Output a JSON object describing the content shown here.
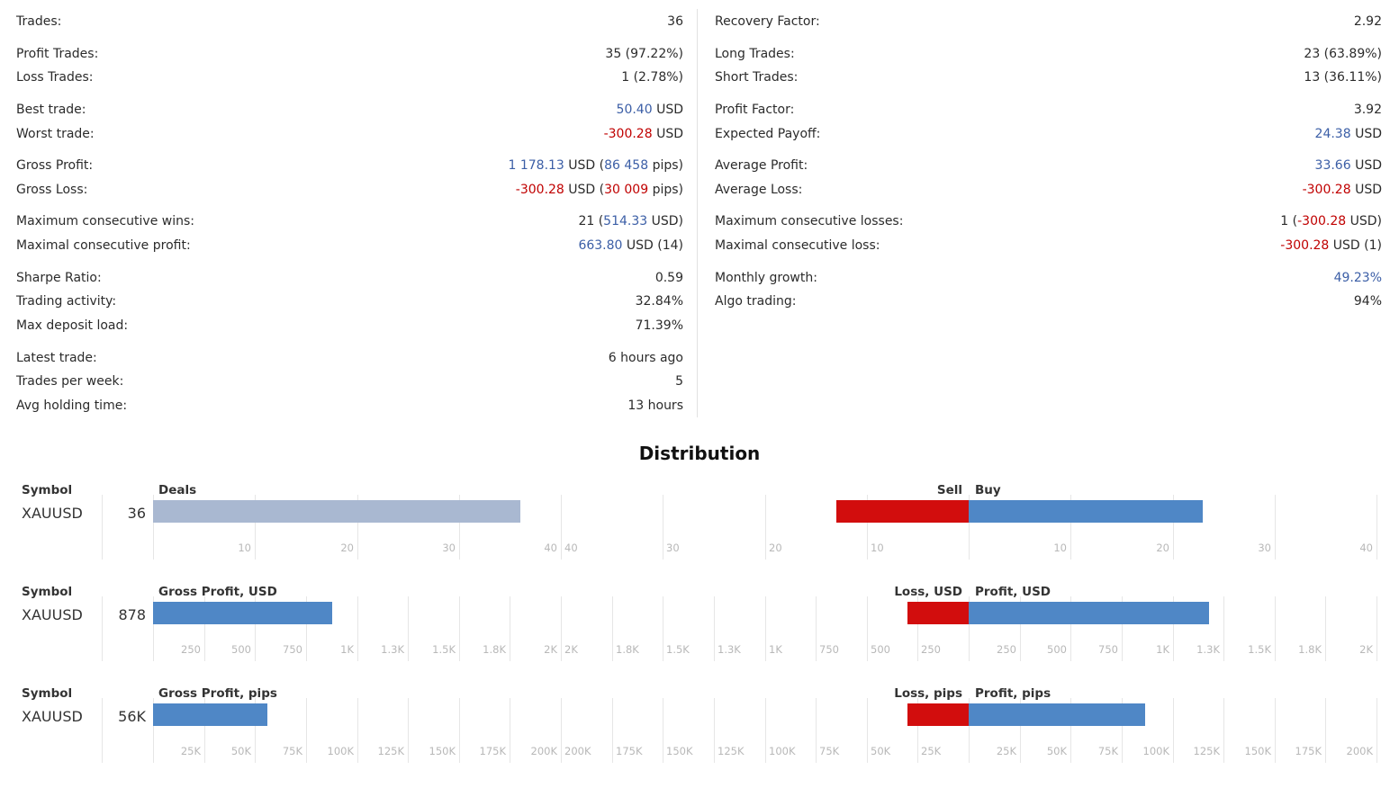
{
  "left_stats": [
    {
      "label": "Trades:",
      "value": [
        {
          "t": "36"
        }
      ]
    },
    {
      "label": "Profit Trades:",
      "value": [
        {
          "t": "35 (97.22%)"
        }
      ]
    },
    {
      "label": "Loss Trades:",
      "value": [
        {
          "t": "1 (2.78%)"
        }
      ]
    },
    {
      "label": "Best trade:",
      "value": [
        {
          "t": "50.40",
          "c": "pos"
        },
        {
          "t": " USD"
        }
      ]
    },
    {
      "label": "Worst trade:",
      "value": [
        {
          "t": "-300.28",
          "c": "neg"
        },
        {
          "t": " USD"
        }
      ]
    },
    {
      "label": "Gross Profit:",
      "value": [
        {
          "t": "1 178.13",
          "c": "pos"
        },
        {
          "t": " USD ("
        },
        {
          "t": "86 458",
          "c": "pos"
        },
        {
          "t": " pips)"
        }
      ]
    },
    {
      "label": "Gross Loss:",
      "value": [
        {
          "t": "-300.28",
          "c": "neg"
        },
        {
          "t": " USD ("
        },
        {
          "t": "30 009",
          "c": "neg"
        },
        {
          "t": " pips)"
        }
      ]
    },
    {
      "label": "Maximum consecutive wins:",
      "value": [
        {
          "t": "21 ("
        },
        {
          "t": "514.33",
          "c": "pos"
        },
        {
          "t": " USD)"
        }
      ]
    },
    {
      "label": "Maximal consecutive profit:",
      "value": [
        {
          "t": "663.80",
          "c": "pos"
        },
        {
          "t": " USD (14)"
        }
      ]
    },
    {
      "label": "Sharpe Ratio:",
      "value": [
        {
          "t": "0.59"
        }
      ]
    },
    {
      "label": "Trading activity:",
      "value": [
        {
          "t": "32.84%"
        }
      ]
    },
    {
      "label": "Max deposit load:",
      "value": [
        {
          "t": "71.39%"
        }
      ]
    },
    {
      "label": "Latest trade:",
      "value": [
        {
          "t": "6 hours ago"
        }
      ]
    },
    {
      "label": "Trades per week:",
      "value": [
        {
          "t": "5"
        }
      ]
    },
    {
      "label": "Avg holding time:",
      "value": [
        {
          "t": "13 hours"
        }
      ]
    }
  ],
  "right_stats": [
    {
      "label": "Recovery Factor:",
      "value": [
        {
          "t": "2.92"
        }
      ]
    },
    {
      "label": "Long Trades:",
      "value": [
        {
          "t": "23 (63.89%)"
        }
      ]
    },
    {
      "label": "Short Trades:",
      "value": [
        {
          "t": "13 (36.11%)"
        }
      ]
    },
    {
      "label": "Profit Factor:",
      "value": [
        {
          "t": "3.92"
        }
      ]
    },
    {
      "label": "Expected Payoff:",
      "value": [
        {
          "t": "24.38",
          "c": "pos"
        },
        {
          "t": " USD"
        }
      ]
    },
    {
      "label": "Average Profit:",
      "value": [
        {
          "t": "33.66",
          "c": "pos"
        },
        {
          "t": " USD"
        }
      ]
    },
    {
      "label": "Average Loss:",
      "value": [
        {
          "t": "-300.28",
          "c": "neg"
        },
        {
          "t": " USD"
        }
      ]
    },
    {
      "label": "Maximum consecutive losses:",
      "value": [
        {
          "t": "1 ("
        },
        {
          "t": "-300.28",
          "c": "neg"
        },
        {
          "t": " USD)"
        }
      ]
    },
    {
      "label": "Maximal consecutive loss:",
      "value": [
        {
          "t": "-300.28",
          "c": "neg"
        },
        {
          "t": " USD (1)"
        }
      ]
    },
    {
      "label": "Monthly growth:",
      "value": [
        {
          "t": "49.23%",
          "c": "pos"
        }
      ]
    },
    {
      "label": "Algo trading:",
      "value": [
        {
          "t": "94%"
        }
      ]
    }
  ],
  "distribution_title": "Distribution",
  "colors": {
    "positive_text": "#3b5ea6",
    "negative_text": "#c00000",
    "deals_bar": "#a9b8d1",
    "blue_bar": "#4f87c6",
    "red_bar": "#d20d0d"
  },
  "chart_data": [
    {
      "type": "bar",
      "symbol_header": "Symbol",
      "left_header": "Deals",
      "left_header_neg": "Sell",
      "left_header_pos": "Buy",
      "symbol": "XAUUSD",
      "total_label": "36",
      "left_value": 36,
      "left_max": 40,
      "left_color": "deals_bar",
      "sell": 13,
      "buy": 23,
      "right_max": 40,
      "left_ticks": [
        "10",
        "20",
        "30",
        "40"
      ],
      "right_ticks_neg": [
        "40",
        "30",
        "20",
        "10"
      ],
      "right_ticks_pos": [
        "10",
        "20",
        "30",
        "40"
      ]
    },
    {
      "type": "bar",
      "symbol_header": "Symbol",
      "left_header": "Gross Profit, USD",
      "left_header_neg": "Loss, USD",
      "left_header_pos": "Profit, USD",
      "symbol": "XAUUSD",
      "total_label": "878",
      "left_value": 878,
      "left_max": 2000,
      "left_color": "blue_bar",
      "sell": 300,
      "buy": 1178,
      "right_max": 2000,
      "left_ticks": [
        "250",
        "500",
        "750",
        "1K",
        "1.3K",
        "1.5K",
        "1.8K",
        "2K"
      ],
      "right_ticks_neg": [
        "2K",
        "1.8K",
        "1.5K",
        "1.3K",
        "1K",
        "750",
        "500",
        "250"
      ],
      "right_ticks_pos": [
        "250",
        "500",
        "750",
        "1K",
        "1.3K",
        "1.5K",
        "1.8K",
        "2K"
      ]
    },
    {
      "type": "bar",
      "symbol_header": "Symbol",
      "left_header": "Gross Profit, pips",
      "left_header_neg": "Loss, pips",
      "left_header_pos": "Profit, pips",
      "symbol": "XAUUSD",
      "total_label": "56K",
      "left_value": 56000,
      "left_max": 200000,
      "left_color": "blue_bar",
      "sell": 30009,
      "buy": 86458,
      "right_max": 200000,
      "left_ticks": [
        "25K",
        "50K",
        "75K",
        "100K",
        "125K",
        "150K",
        "175K",
        "200K"
      ],
      "right_ticks_neg": [
        "200K",
        "175K",
        "150K",
        "125K",
        "100K",
        "75K",
        "50K",
        "25K"
      ],
      "right_ticks_pos": [
        "25K",
        "50K",
        "75K",
        "100K",
        "125K",
        "150K",
        "175K",
        "200K"
      ]
    }
  ]
}
